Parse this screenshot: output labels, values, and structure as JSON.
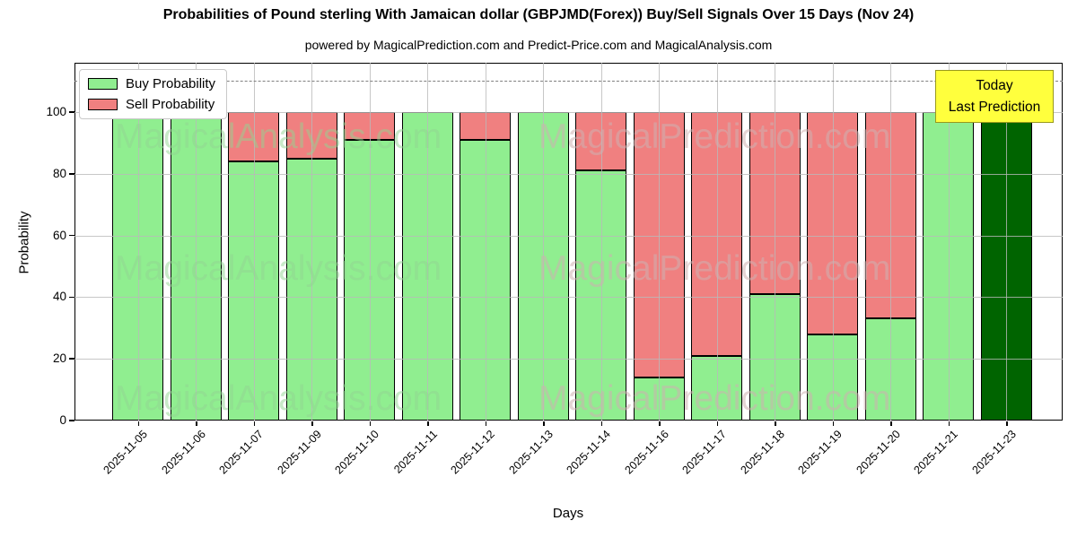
{
  "chart_data": {
    "type": "bar",
    "stacked": true,
    "title": "Probabilities of Pound sterling With Jamaican dollar (GBPJMD(Forex)) Buy/Sell Signals Over 15 Days (Nov 24)",
    "subtitle": "powered by MagicalPrediction.com and Predict-Price.com and MagicalAnalysis.com",
    "xlabel": "Days",
    "ylabel": "Probability",
    "categories": [
      "2025-11-05",
      "2025-11-06",
      "2025-11-07",
      "2025-11-09",
      "2025-11-10",
      "2025-11-11",
      "2025-11-12",
      "2025-11-13",
      "2025-11-14",
      "2025-11-16",
      "2025-11-17",
      "2025-11-18",
      "2025-11-19",
      "2025-11-20",
      "2025-11-21",
      "2025-11-23"
    ],
    "series": [
      {
        "name": "Buy Probability",
        "color": "#90ee90",
        "values": [
          100,
          100,
          84,
          85,
          91,
          100,
          91,
          100,
          81,
          14,
          21,
          41,
          28,
          33,
          100,
          100
        ]
      },
      {
        "name": "Sell Probability",
        "color": "#f08080",
        "values": [
          0,
          0,
          16,
          15,
          9,
          0,
          9,
          0,
          19,
          86,
          79,
          59,
          72,
          67,
          0,
          0
        ]
      }
    ],
    "today_index": 15,
    "today_color": "#006400",
    "bar_edge_color": "#000000",
    "yticks": [
      0,
      20,
      40,
      60,
      80,
      100
    ],
    "ylim": [
      0,
      116
    ],
    "dashed_line_y": 110,
    "grid": true,
    "legend_position": "upper left"
  },
  "legend": {
    "buy_label": "Buy Probability",
    "sell_label": "Sell Probability"
  },
  "annotation": {
    "line1": "Today",
    "line2": "Last Prediction",
    "bg": "#ffff3d"
  },
  "watermarks": {
    "left": "MagicalAnalysis.com",
    "right": "MagicalPrediction.com"
  }
}
